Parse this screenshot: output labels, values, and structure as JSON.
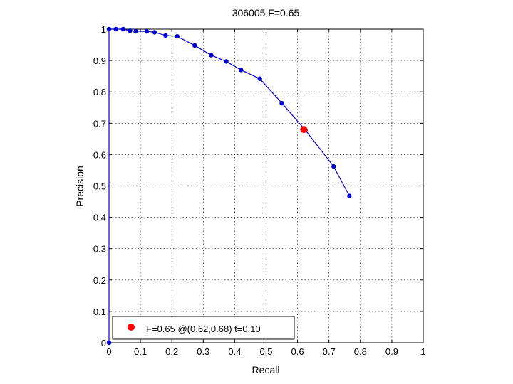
{
  "chart_data": {
    "type": "line",
    "title": "306005 F=0.65",
    "xlabel": "Recall",
    "ylabel": "Precision",
    "xlim": [
      0,
      1
    ],
    "ylim": [
      0,
      1
    ],
    "grid": true,
    "x_ticks": [
      "0",
      "0.1",
      "0.2",
      "0.3",
      "0.4",
      "0.5",
      "0.6",
      "0.7",
      "0.8",
      "0.9",
      "1"
    ],
    "y_ticks": [
      "0",
      "0.1",
      "0.2",
      "0.3",
      "0.4",
      "0.5",
      "0.6",
      "0.7",
      "0.8",
      "0.9",
      "1"
    ],
    "series": [
      {
        "color": "#0000cc",
        "x": [
          0.0,
          0.0,
          0.0,
          0.022,
          0.045,
          0.067,
          0.085,
          0.12,
          0.145,
          0.18,
          0.217,
          0.273,
          0.325,
          0.373,
          0.42,
          0.48,
          0.55,
          0.625,
          0.715,
          0.765
        ],
        "y": [
          0.0,
          0.5,
          1.0,
          1.0,
          1.0,
          0.995,
          0.993,
          0.993,
          0.99,
          0.98,
          0.977,
          0.948,
          0.917,
          0.897,
          0.87,
          0.842,
          0.764,
          0.678,
          0.562,
          0.468
        ]
      }
    ],
    "highlight_point": {
      "x": 0.62,
      "y": 0.68,
      "color": "#ff0000"
    },
    "legend": {
      "placement": "bottom-left",
      "entries": [
        "F=0.65 @(0.62,0.68) t=0.10"
      ]
    }
  }
}
